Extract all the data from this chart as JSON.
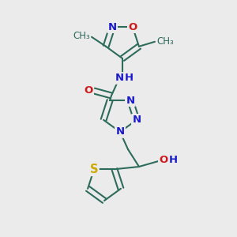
{
  "bg_color": "#ebebeb",
  "bond_color": "#2d6b5a",
  "bond_width": 1.5,
  "atom_colors": {
    "N": "#1a1acc",
    "O": "#cc1a1a",
    "S": "#ccaa00",
    "H": "#1a1acc"
  },
  "font_size": 9.5
}
